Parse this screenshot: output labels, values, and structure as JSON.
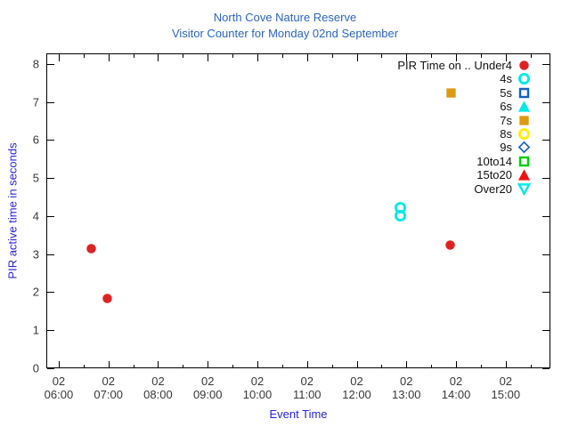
{
  "header": {
    "title": "North Cove Nature Reserve",
    "subtitle": "Visitor Counter for Monday 02nd September",
    "title_color": "#2a65c4"
  },
  "chart_data": {
    "type": "scatter",
    "title": "North Cove Nature Reserve",
    "subtitle": "Visitor Counter for Monday 02nd September",
    "xlabel": "Event Time",
    "ylabel": "PIR active time in seconds",
    "axis_label_color": "#2525dd",
    "tick_label_color": "#383838",
    "x_axis": {
      "date_label": "02",
      "tick_times": [
        "06:00",
        "07:00",
        "08:00",
        "09:00",
        "10:00",
        "11:00",
        "12:00",
        "13:00",
        "14:00",
        "15:00"
      ],
      "minor_tick_interval_minutes": 30,
      "range_hours": [
        5.75,
        15.9
      ]
    },
    "y_axis": {
      "ticks": [
        0,
        1,
        2,
        3,
        4,
        5,
        6,
        7,
        8
      ],
      "range": [
        0,
        8.28
      ]
    },
    "legend": {
      "position": "top-right",
      "title_prefix": "PIR Time on .."
    },
    "series": [
      {
        "name": "Under4",
        "legend_label": "PIR Time on .. Under4",
        "marker": "filled-circle",
        "color": "#dd2222",
        "points": [
          {
            "time": "06:39",
            "seconds": 3.15
          },
          {
            "time": "06:59",
            "seconds": 1.83
          },
          {
            "time": "13:53",
            "seconds": 3.25
          }
        ]
      },
      {
        "name": "4s",
        "legend_label": "4s",
        "marker": "open-circle",
        "color": "#00e8e8",
        "points": [
          {
            "time": "12:53",
            "seconds": 4.22
          },
          {
            "time": "12:53",
            "seconds": 4.01
          }
        ]
      },
      {
        "name": "5s",
        "legend_label": "5s",
        "marker": "open-square",
        "color": "#1560bd",
        "points": []
      },
      {
        "name": "6s",
        "legend_label": "6s",
        "marker": "filled-triangle-up",
        "color": "#00e8e8",
        "points": []
      },
      {
        "name": "7s",
        "legend_label": "7s",
        "marker": "filled-square",
        "color": "#dd9a10",
        "points": [
          {
            "time": "13:54",
            "seconds": 7.25
          }
        ]
      },
      {
        "name": "8s",
        "legend_label": "8s",
        "marker": "open-circle",
        "color": "#ffee00",
        "points": []
      },
      {
        "name": "9s",
        "legend_label": "9s",
        "marker": "open-diamond",
        "color": "#1560bd",
        "points": []
      },
      {
        "name": "10to14",
        "legend_label": "10to14",
        "marker": "open-square",
        "color": "#00cc11",
        "points": []
      },
      {
        "name": "15to20",
        "legend_label": "15to20",
        "marker": "filled-triangle-up",
        "color": "#ee1111",
        "points": []
      },
      {
        "name": "Over20",
        "legend_label": "Over20",
        "marker": "open-triangle-down",
        "color": "#00e8e8",
        "points": []
      }
    ]
  }
}
